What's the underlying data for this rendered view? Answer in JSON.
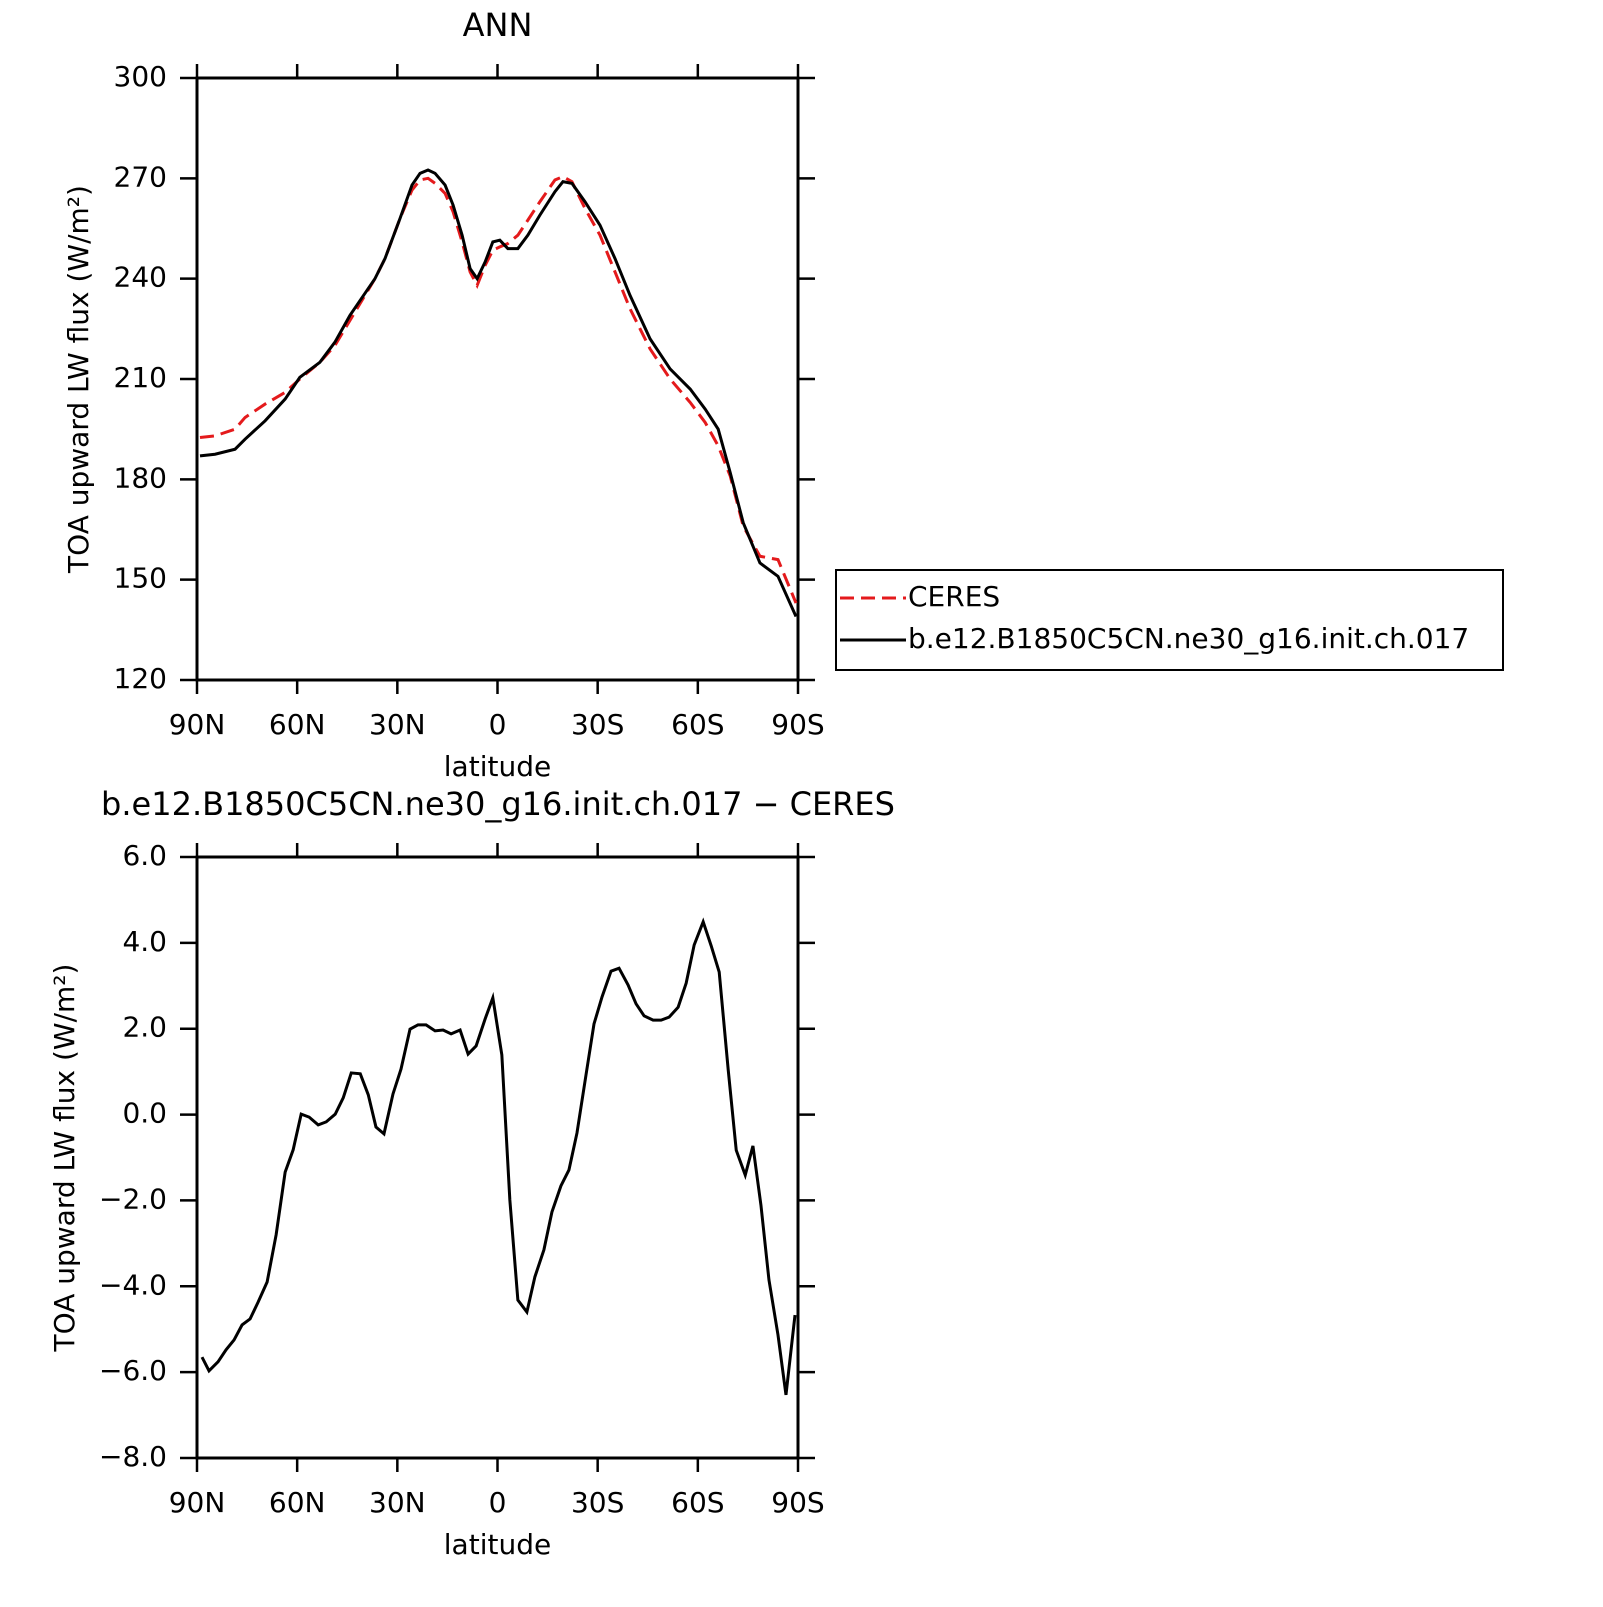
{
  "chart_data": [
    {
      "type": "line",
      "title": "ANN",
      "xlabel": "latitude",
      "ylabel": "TOA upward LW flux (W/m²)",
      "xlim": [
        90,
        -90
      ],
      "ylim": [
        120,
        300
      ],
      "xticks": [
        {
          "value": 90,
          "label": "90N"
        },
        {
          "value": 60,
          "label": "60N"
        },
        {
          "value": 30,
          "label": "30N"
        },
        0,
        {
          "value": -30,
          "label": "30S"
        },
        {
          "value": -60,
          "label": "60S"
        },
        {
          "value": -90,
          "label": "90S"
        }
      ],
      "yticks": [
        120,
        150,
        180,
        210,
        240,
        270,
        300
      ],
      "legend": "outside right",
      "x": [
        89.1,
        84.6,
        78.6,
        75.6,
        69.6,
        63.6,
        59.2,
        53.2,
        48.7,
        44.2,
        36.7,
        33.7,
        29.2,
        25.6,
        23.2,
        20.8,
        18.7,
        15.7,
        13.3,
        10.6,
        8.2,
        6.1,
        3.7,
        1.4,
        -0.7,
        -3.1,
        -6.1,
        -9.1,
        -12.7,
        -17.2,
        -19.6,
        -22.3,
        -26.2,
        -30.7,
        -35.2,
        -39.7,
        -45.7,
        -51.7,
        -57.7,
        -62.2,
        -66.1,
        -69.7,
        -73.6,
        -78.6,
        -84,
        -89.4
      ],
      "series": [
        {
          "name": "CERES",
          "color": "#e41a1c",
          "dash": "dashed",
          "values": [
            192.5,
            193,
            195,
            198.5,
            202.5,
            206,
            210,
            215,
            220,
            227.5,
            240,
            246,
            258,
            266.5,
            269.5,
            270,
            268.5,
            265.5,
            260,
            251,
            242,
            238,
            244,
            248.5,
            249.5,
            250.5,
            253,
            257.5,
            263,
            269.5,
            270.5,
            269,
            261,
            253,
            242,
            231,
            219,
            210,
            203,
            197,
            190,
            181,
            166,
            157,
            156,
            143
          ]
        },
        {
          "name": "b.e12.B1850C5CN.ne30_g16.init.ch.017",
          "color": "#000000",
          "dash": "solid",
          "values": [
            187,
            187.5,
            189,
            192,
            197.5,
            204,
            210.5,
            215,
            221,
            229,
            240,
            246,
            258,
            268,
            271.5,
            272.5,
            271.5,
            268,
            262,
            253,
            243,
            240,
            245,
            251,
            251.5,
            249,
            249,
            253,
            259,
            266,
            269,
            268.5,
            263,
            256,
            246,
            235,
            222,
            213,
            207,
            201,
            195,
            182,
            167,
            155,
            151,
            139
          ]
        }
      ]
    },
    {
      "type": "line",
      "title": "b.e12.B1850C5CN.ne30_g16.init.ch.017 − CERES",
      "xlabel": "latitude",
      "ylabel": "TOA upward LW flux (W/m²)",
      "xlim": [
        90,
        -90
      ],
      "ylim": [
        -8,
        6
      ],
      "xticks": [
        {
          "value": 90,
          "label": "90N"
        },
        {
          "value": 60,
          "label": "60N"
        },
        {
          "value": 30,
          "label": "30N"
        },
        0,
        {
          "value": -30,
          "label": "30S"
        },
        {
          "value": -60,
          "label": "60S"
        },
        {
          "value": -90,
          "label": "90S"
        }
      ],
      "yticks": [
        {
          "value": -8,
          "label": "−8.0"
        },
        {
          "value": -6,
          "label": "−6.0"
        },
        {
          "value": -4,
          "label": "−4.0"
        },
        {
          "value": -2,
          "label": "−2.0"
        },
        {
          "value": 0,
          "label": "0.0"
        },
        {
          "value": 2,
          "label": "2.0"
        },
        {
          "value": 4,
          "label": "4.0"
        },
        {
          "value": 6,
          "label": "6.0"
        }
      ],
      "x": [
        88.5,
        86.4,
        83.7,
        81.3,
        78.9,
        76.5,
        74.1,
        71.7,
        69.0,
        66.3,
        63.6,
        61.2,
        58.8,
        56.4,
        53.7,
        51.3,
        48.6,
        46.2,
        43.8,
        41.1,
        38.7,
        36.4,
        34.0,
        31.3,
        28.9,
        26.2,
        23.8,
        21.4,
        18.7,
        16.3,
        13.9,
        11.2,
        8.8,
        6.4,
        3.7,
        1.4,
        -1.3,
        -3.7,
        -6.1,
        -8.8,
        -11.2,
        -13.9,
        -16.3,
        -19.0,
        -21.4,
        -23.8,
        -26.5,
        -28.9,
        -31.3,
        -34.0,
        -36.4,
        -39.1,
        -41.5,
        -43.9,
        -46.6,
        -49.0,
        -51.4,
        -54.1,
        -56.5,
        -58.9,
        -61.6,
        -64.0,
        -66.4,
        -69.1,
        -71.5,
        -74.2,
        -76.5,
        -78.9,
        -81.3,
        -84.0,
        -86.4,
        -89.1
      ],
      "series": [
        {
          "color": "#000000",
          "dash": "solid",
          "values": [
            -5.65,
            -5.97,
            -5.76,
            -5.48,
            -5.25,
            -4.9,
            -4.76,
            -4.37,
            -3.9,
            -2.8,
            -1.34,
            -0.82,
            0.01,
            -0.06,
            -0.24,
            -0.17,
            0.01,
            0.39,
            0.97,
            0.95,
            0.46,
            -0.29,
            -0.45,
            0.48,
            1.06,
            1.99,
            2.09,
            2.09,
            1.95,
            1.97,
            1.88,
            1.97,
            1.41,
            1.6,
            2.23,
            2.72,
            1.39,
            -1.99,
            -4.32,
            -4.6,
            -3.78,
            -3.15,
            -2.27,
            -1.66,
            -1.29,
            -0.43,
            0.92,
            2.11,
            2.74,
            3.34,
            3.41,
            3.02,
            2.58,
            2.3,
            2.2,
            2.2,
            2.27,
            2.5,
            3.06,
            3.95,
            4.49,
            3.93,
            3.32,
            1.04,
            -0.83,
            -1.41,
            -0.73,
            -2.11,
            -3.85,
            -5.13,
            -6.53,
            -4.67
          ]
        }
      ]
    }
  ]
}
